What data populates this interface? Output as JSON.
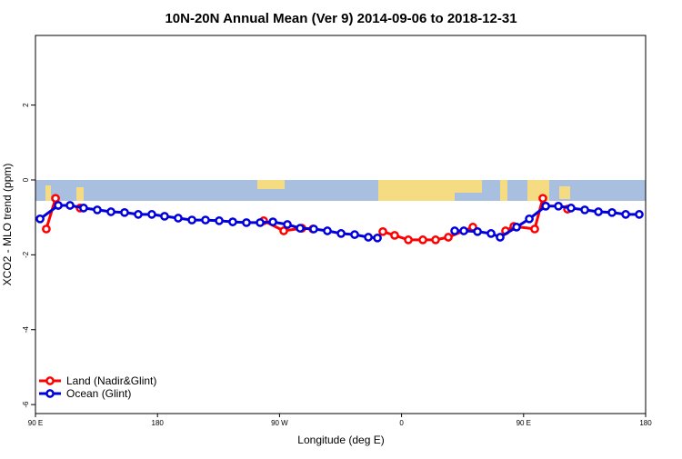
{
  "chart_data": {
    "type": "line",
    "title": "10N-20N Annual Mean (Ver 9)   2014-09-06 to 2018-12-31",
    "xlabel": "Longitude (deg E)",
    "ylabel": "XCO2 - MLO trend (ppm)",
    "xlim": [
      90,
      540
    ],
    "xticks": [
      {
        "value": 90,
        "label": "90 E"
      },
      180,
      {
        "value": 270,
        "label": "90 W"
      },
      {
        "value": 360,
        "label": "0"
      },
      {
        "value": 450,
        "label": "90 E"
      },
      {
        "value": 540,
        "label": "180"
      }
    ],
    "ylim": [
      -6.24,
      3.86
    ],
    "yticks": [
      -6,
      -4,
      -2,
      0,
      2
    ],
    "legend": "lower left",
    "series": [
      {
        "name": "Land (Nadir&Glint)",
        "color": "#ff0000",
        "x": [
          98.0,
          104.8,
          106.8,
          null,
          122.9,
          null,
          258.3,
          273.1,
          286.5,
          294.6,
          null,
          346.2,
          354.9,
          365.0,
          375.7,
          385.1,
          394.5,
          412.6,
          null,
          436.7,
          442.8,
          458.2,
          464.2,
          466.3,
          null,
          482.4
        ],
        "values": [
          -1.31,
          -0.49,
          -0.68,
          null,
          -0.75,
          null,
          -1.09,
          -1.36,
          -1.29,
          -1.31,
          null,
          -1.38,
          -1.48,
          -1.6,
          -1.6,
          -1.6,
          -1.53,
          -1.26,
          null,
          -1.36,
          -1.24,
          -1.31,
          -0.49,
          -0.7,
          null,
          -0.78
        ]
      },
      {
        "name": "Ocean (Glint)",
        "color": "#0000dd",
        "x": [
          93.4,
          106.8,
          115.5,
          125.5,
          135.6,
          145.7,
          155.7,
          165.8,
          175.8,
          185.2,
          195.3,
          205.4,
          215.4,
          225.5,
          235.5,
          245.6,
          255.7,
          265.1,
          275.8,
          285.2,
          295.2,
          305.3,
          315.4,
          325.4,
          335.5,
          342.2,
          null,
          399.2,
          405.9,
          416.0,
          426.0,
          432.7,
          444.8,
          454.2,
          466.3,
          475.7,
          485.0,
          495.1,
          505.2,
          515.2,
          525.3,
          535.3
        ],
        "values": [
          -1.04,
          -0.68,
          -0.68,
          -0.75,
          -0.8,
          -0.85,
          -0.87,
          -0.92,
          -0.92,
          -0.97,
          -1.02,
          -1.07,
          -1.07,
          -1.09,
          -1.12,
          -1.14,
          -1.14,
          -1.12,
          -1.19,
          -1.29,
          -1.31,
          -1.36,
          -1.43,
          -1.46,
          -1.53,
          -1.55,
          null,
          -1.36,
          -1.36,
          -1.38,
          -1.43,
          -1.53,
          -1.26,
          -1.04,
          -0.7,
          -0.7,
          -0.75,
          -0.8,
          -0.85,
          -0.87,
          -0.92,
          -0.92
        ]
      }
    ]
  }
}
